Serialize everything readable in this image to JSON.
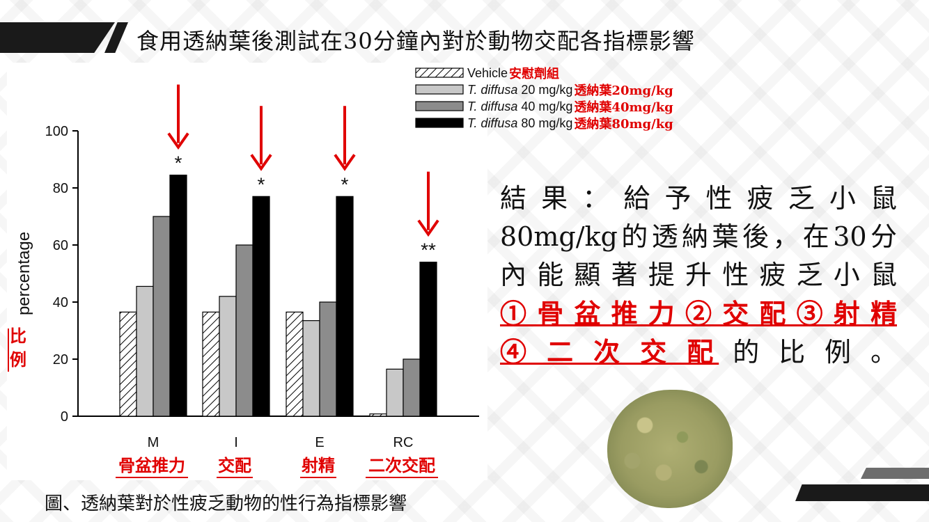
{
  "title": "食用透納葉後測試在30分鐘內對於動物交配各指標影響",
  "caption": "圖、透納葉對於性疲乏動物的性行為指標影響",
  "result": {
    "line1": "結果：給予性疲乏小鼠",
    "line2": "80mg/kg的透納葉後，在30分",
    "line3": "內能顯著提升性疲乏小鼠",
    "line4": "①骨盆推力②交配③射精",
    "line5_red": "④ 二 次 交 配",
    "line5_rest": "的 比 例 。"
  },
  "colors": {
    "vehicle": "#ffffff",
    "dose20": "#c8c8c8",
    "dose40": "#8c8c8c",
    "dose80": "#000000",
    "accent_red": "#e00000"
  },
  "chart_data": {
    "type": "bar",
    "ylabel": "percentage",
    "ylabel_cn": "比例",
    "ylim": [
      0,
      100
    ],
    "yticks": [
      "0",
      "20",
      "40",
      "60",
      "80",
      "100"
    ],
    "categories": [
      "M",
      "I",
      "E",
      "RC"
    ],
    "categories_cn": [
      "骨盆推力",
      "交配",
      "射精",
      "二次交配"
    ],
    "series": [
      {
        "name": "Vehicle",
        "name_cn": "安慰劑組",
        "italic": "",
        "dose": "",
        "values": [
          36.5,
          36.5,
          36.5,
          0.8
        ]
      },
      {
        "name": "T. diffusa 20 mg/kg",
        "name_cn": "透納葉20mg/kg",
        "italic": "T. diffusa",
        "dose": " 20 mg/kg",
        "values": [
          45.5,
          42,
          33.5,
          16.5
        ]
      },
      {
        "name": "T. diffusa 40 mg/kg",
        "name_cn": "透納葉40mg/kg",
        "italic": "T. diffusa",
        "dose": " 40 mg/kg",
        "values": [
          70,
          60,
          40,
          20
        ]
      },
      {
        "name": "T. diffusa 80 mg/kg",
        "name_cn": "透納葉80mg/kg",
        "italic": "T. diffusa",
        "dose": " 80 mg/kg",
        "values": [
          84.5,
          77,
          77,
          54
        ]
      }
    ],
    "annotations": [
      "*",
      "*",
      "*",
      "**"
    ]
  }
}
